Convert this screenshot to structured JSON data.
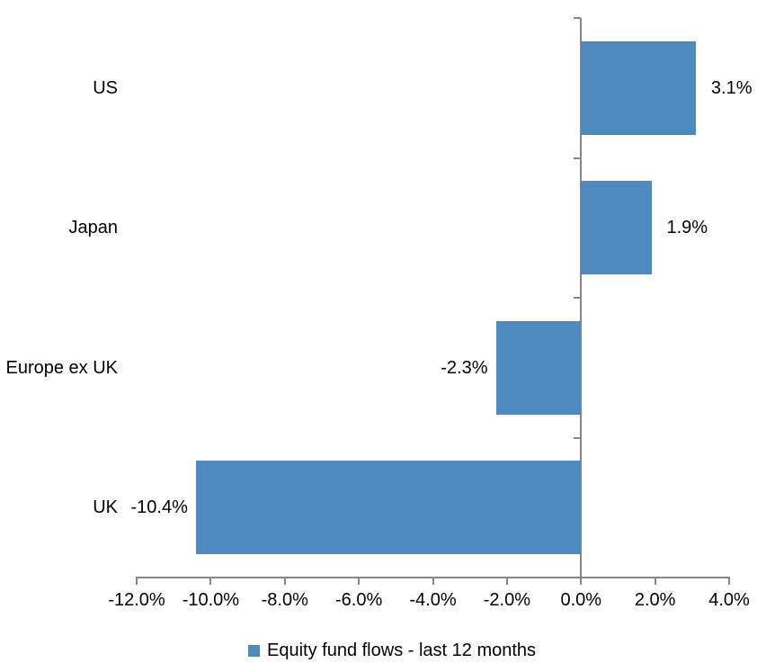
{
  "chart_data": {
    "type": "bar",
    "orientation": "horizontal",
    "categories": [
      "US",
      "Japan",
      "Europe ex UK",
      "UK"
    ],
    "values": [
      3.1,
      1.9,
      -2.3,
      -10.4
    ],
    "bar_labels": [
      "3.1%",
      "1.9%",
      "-2.3%",
      "-10.4%"
    ],
    "series_name": "Equity fund flows - last 12 months",
    "xlim": [
      -12,
      4
    ],
    "x_ticks": [
      -12,
      -10,
      -8,
      -6,
      -4,
      -2,
      0,
      2,
      4
    ],
    "x_tick_labels": [
      "-12.0%",
      "-10.0%",
      "-8.0%",
      "-6.0%",
      "-4.0%",
      "-2.0%",
      "0.0%",
      "2.0%",
      "4.0%"
    ],
    "bar_color": "#4e8ac0",
    "axis_color": "#868686",
    "label_color": "#000000",
    "grid": false,
    "legend_position": "bottom"
  }
}
